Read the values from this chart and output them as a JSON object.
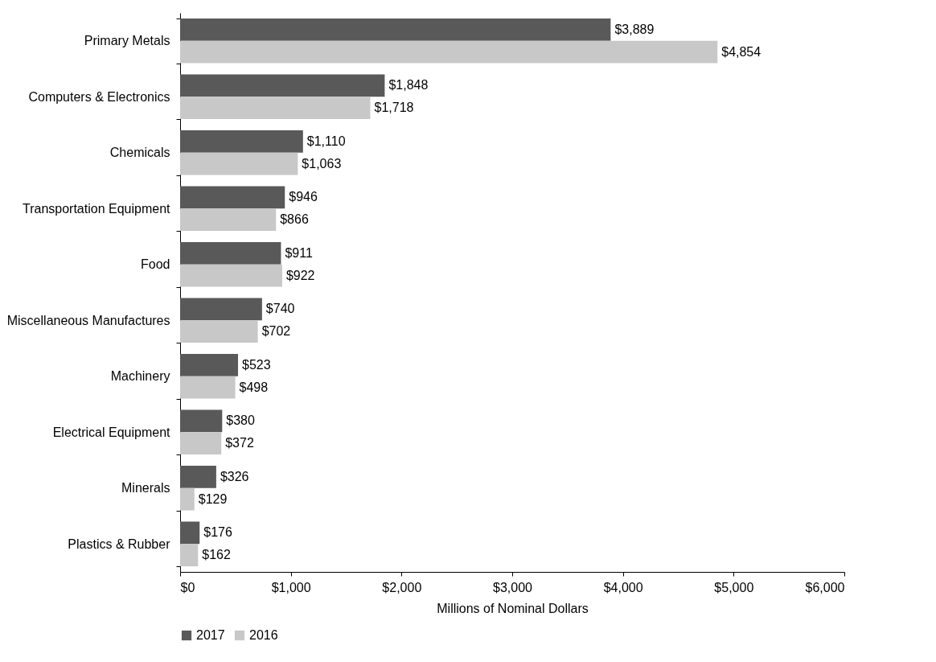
{
  "chart_data": {
    "type": "bar",
    "orientation": "horizontal",
    "xlabel": "Millions of Nominal Dollars",
    "categories": [
      "Primary Metals",
      "Computers & Electronics",
      "Chemicals",
      "Transportation Equipment",
      "Food",
      "Miscellaneous Manufactures",
      "Machinery",
      "Electrical Equipment",
      "Minerals",
      "Plastics & Rubber"
    ],
    "series": [
      {
        "name": "2017",
        "color": "#595959",
        "values": [
          3889,
          1848,
          1110,
          946,
          911,
          740,
          523,
          380,
          326,
          176
        ],
        "value_labels": [
          "$3,889",
          "$1,848",
          "$1,110",
          "$946",
          "$911",
          "$740",
          "$523",
          "$380",
          "$326",
          "$176"
        ]
      },
      {
        "name": "2016",
        "color": "#c8c8c8",
        "values": [
          4854,
          1718,
          1063,
          866,
          922,
          702,
          498,
          372,
          129,
          162
        ],
        "value_labels": [
          "$4,854",
          "$1,718",
          "$1,063",
          "$866",
          "$922",
          "$702",
          "$498",
          "$372",
          "$129",
          "$162"
        ]
      }
    ],
    "xlim": [
      0,
      6000
    ],
    "xticks": [
      {
        "value": 0,
        "label": "$0"
      },
      {
        "value": 1000,
        "label": "$1,000"
      },
      {
        "value": 2000,
        "label": "$2,000"
      },
      {
        "value": 3000,
        "label": "$3,000"
      },
      {
        "value": 4000,
        "label": "$4,000"
      },
      {
        "value": 5000,
        "label": "$5,000"
      },
      {
        "value": 6000,
        "label": "$6,000"
      }
    ],
    "legend": "bottom",
    "grid": false
  }
}
